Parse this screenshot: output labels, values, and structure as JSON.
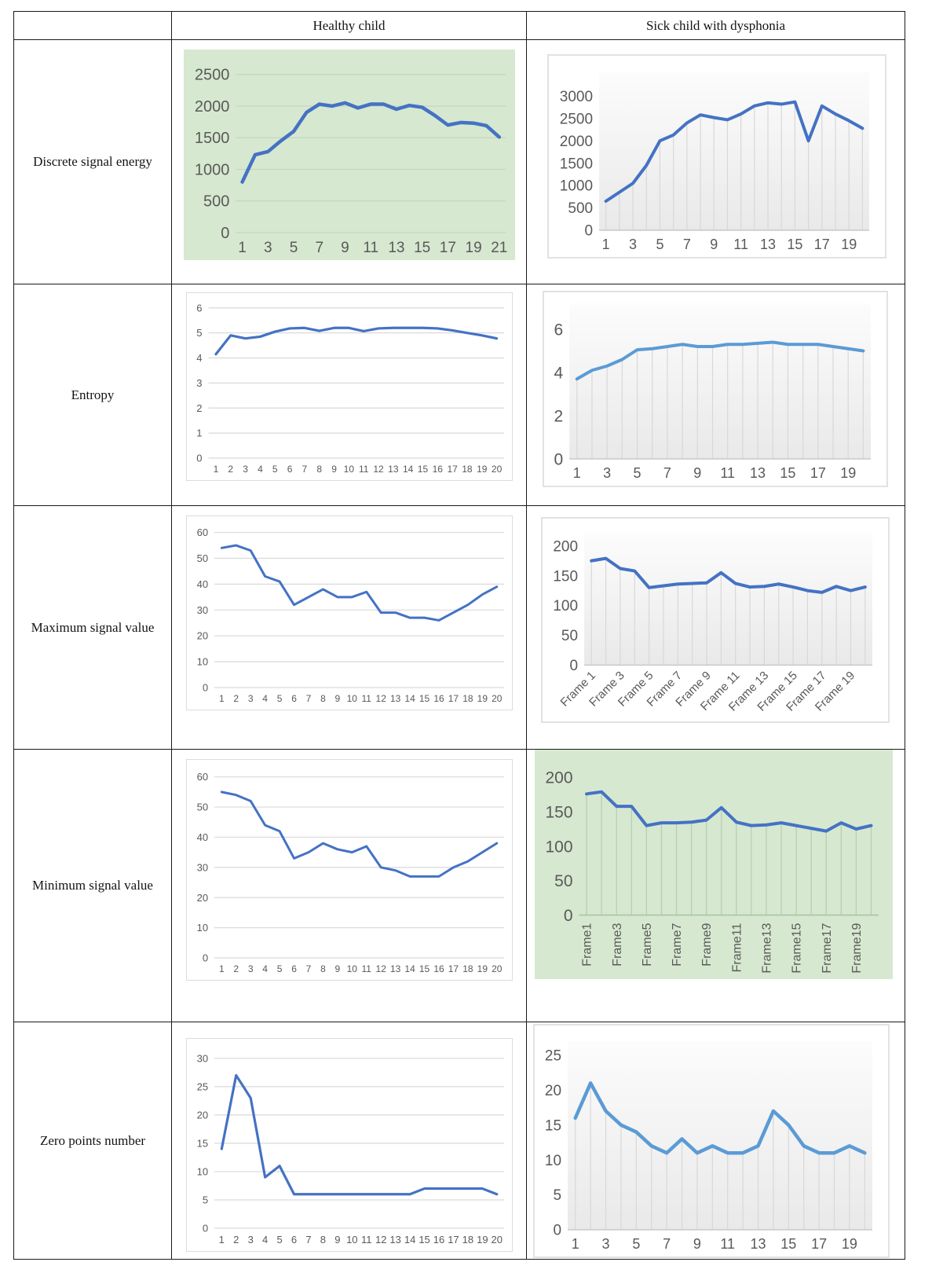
{
  "table": {
    "col_headers": [
      "",
      "Healthy child",
      "Sick child with dysphonia"
    ],
    "rows": [
      {
        "label": "Discrete signal energy"
      },
      {
        "label": "Entropy"
      },
      {
        "label": "Maximum signal value"
      },
      {
        "label": "Minimum signal value"
      },
      {
        "label": "Zero points number"
      }
    ]
  },
  "colors": {
    "healthy_line": "#4472C4",
    "sick_light_line": "#5B9BD5",
    "green_panel": "#D6E8D0",
    "grid_gray": "#D9D9D9",
    "tick_text": "#595959",
    "table_border": "#1A1A1A"
  },
  "chart_data": [
    {
      "id": "energy-healthy",
      "row": "Discrete signal energy",
      "column": "Healthy child",
      "type": "line",
      "categories": [
        "1",
        "2",
        "3",
        "4",
        "5",
        "6",
        "7",
        "8",
        "9",
        "10",
        "11",
        "12",
        "13",
        "14",
        "15",
        "16",
        "17",
        "18",
        "19",
        "20",
        "21"
      ],
      "label_every": 2,
      "values": [
        800,
        1230,
        1280,
        1450,
        1600,
        1900,
        2030,
        2000,
        2050,
        1970,
        2030,
        2030,
        1950,
        2010,
        1980,
        1850,
        1700,
        1740,
        1730,
        1690,
        1510
      ],
      "ylim": [
        0,
        2720
      ],
      "yticks": [
        0,
        500,
        1000,
        1500,
        2000,
        2500
      ],
      "grid": "h",
      "grid_color": "#c3d6c0",
      "axis_color": "#c3d6c0",
      "bg": "green",
      "gradient": false,
      "line_color": "#4472C4",
      "line_width": 4.5,
      "tick_fs": 20,
      "xtick_fs": 19,
      "x_label_rotation": 0,
      "top_pad": 14,
      "right_pad": 12
    },
    {
      "id": "energy-sick",
      "row": "Discrete signal energy",
      "column": "Sick child with dysphonia",
      "type": "line",
      "categories": [
        "1",
        "2",
        "3",
        "4",
        "5",
        "6",
        "7",
        "8",
        "9",
        "10",
        "11",
        "12",
        "13",
        "14",
        "15",
        "16",
        "17",
        "18",
        "19",
        "20"
      ],
      "label_every": 2,
      "values": [
        650,
        850,
        1050,
        1450,
        2000,
        2130,
        2400,
        2580,
        2520,
        2470,
        2600,
        2780,
        2850,
        2820,
        2870,
        2000,
        2780,
        2600,
        2450,
        2280
      ],
      "ylim": [
        0,
        3550
      ],
      "yticks": [
        0,
        500,
        1000,
        1500,
        2000,
        2500,
        3000
      ],
      "grid": "v",
      "grid_color": "#d8d8d8",
      "axis_color": "#c9c9c9",
      "bg": "white",
      "gradient": true,
      "line_color": "#4472C4",
      "line_width": 4,
      "tick_fs": 19,
      "xtick_fs": 18,
      "x_label_rotation": 0,
      "top_pad": 20,
      "right_pad": 20
    },
    {
      "id": "entropy-healthy",
      "row": "Entropy",
      "column": "Healthy child",
      "type": "line",
      "categories": [
        "1",
        "2",
        "3",
        "4",
        "5",
        "6",
        "7",
        "8",
        "9",
        "10",
        "11",
        "12",
        "13",
        "14",
        "15",
        "16",
        "17",
        "18",
        "19",
        "20"
      ],
      "label_every": 1,
      "values": [
        4.15,
        4.9,
        4.78,
        4.85,
        5.05,
        5.18,
        5.2,
        5.08,
        5.2,
        5.2,
        5.07,
        5.18,
        5.2,
        5.2,
        5.2,
        5.18,
        5.1,
        5.0,
        4.9,
        4.78
      ],
      "ylim": [
        0,
        6.15
      ],
      "yticks": [
        0,
        1,
        2,
        3,
        4,
        5,
        6
      ],
      "grid": "h",
      "grid_color": "#d9d9d9",
      "axis_color": "#d9d9d9",
      "bg": "white",
      "gradient": false,
      "line_color": "#4472C4",
      "line_width": 3.2,
      "tick_fs": 13,
      "xtick_fs": 12,
      "x_label_rotation": 0,
      "top_pad": 14,
      "right_pad": 10
    },
    {
      "id": "entropy-sick",
      "row": "Entropy",
      "column": "Sick child with dysphonia",
      "type": "line",
      "categories": [
        "1",
        "2",
        "3",
        "4",
        "5",
        "6",
        "7",
        "8",
        "9",
        "10",
        "11",
        "12",
        "13",
        "14",
        "15",
        "16",
        "17",
        "18",
        "19",
        "20"
      ],
      "label_every": 2,
      "values": [
        3.7,
        4.1,
        4.3,
        4.6,
        5.05,
        5.1,
        5.2,
        5.3,
        5.2,
        5.2,
        5.3,
        5.3,
        5.35,
        5.4,
        5.3,
        5.3,
        5.3,
        5.2,
        5.1,
        5.0
      ],
      "ylim": [
        0,
        7.2
      ],
      "yticks": [
        0,
        2,
        4,
        6
      ],
      "grid": "v",
      "grid_color": "#d8d8d8",
      "axis_color": "#c9c9c9",
      "bg": "white",
      "gradient": true,
      "line_color": "#5B9BD5",
      "line_width": 4,
      "tick_fs": 21,
      "xtick_fs": 18,
      "x_label_rotation": 0,
      "top_pad": 14,
      "right_pad": 20
    },
    {
      "id": "max-healthy",
      "row": "Maximum signal value",
      "column": "Healthy child",
      "type": "line",
      "categories": [
        "1",
        "2",
        "3",
        "4",
        "5",
        "6",
        "7",
        "8",
        "9",
        "10",
        "11",
        "12",
        "13",
        "14",
        "15",
        "16",
        "17",
        "18",
        "19",
        "20"
      ],
      "label_every": 1,
      "values": [
        54,
        55,
        53,
        43,
        41,
        32,
        35,
        38,
        35,
        35,
        37,
        29,
        29,
        27,
        27,
        26,
        29,
        32,
        36,
        39
      ],
      "ylim": [
        0,
        62
      ],
      "yticks": [
        0,
        10,
        20,
        30,
        40,
        50,
        60
      ],
      "grid": "h",
      "grid_color": "#d9d9d9",
      "axis_color": "#d9d9d9",
      "bg": "white",
      "gradient": false,
      "line_color": "#4472C4",
      "line_width": 3,
      "tick_fs": 13,
      "xtick_fs": 12,
      "x_label_rotation": 0,
      "top_pad": 14,
      "right_pad": 10
    },
    {
      "id": "max-sick",
      "row": "Maximum signal value",
      "column": "Sick child with dysphonia",
      "type": "line",
      "categories": [
        "Frame 1",
        "Frame 2",
        "Frame 3",
        "Frame 4",
        "Frame 5",
        "Frame 6",
        "Frame 7",
        "Frame 8",
        "Frame 9",
        "Frame 10",
        "Frame 11",
        "Frame 12",
        "Frame 13",
        "Frame 14",
        "Frame 15",
        "Frame 16",
        "Frame 17",
        "Frame 18",
        "Frame 19",
        "Frame 20"
      ],
      "label_every": 2,
      "values": [
        175,
        179,
        162,
        158,
        130,
        133,
        136,
        137,
        138,
        155,
        137,
        131,
        132,
        136,
        131,
        125,
        122,
        132,
        125,
        131
      ],
      "ylim": [
        0,
        222
      ],
      "yticks": [
        0,
        50,
        100,
        150,
        200
      ],
      "grid": "v",
      "grid_color": "#d8d8d8",
      "axis_color": "#c9c9c9",
      "bg": "white",
      "gradient": true,
      "line_color": "#4472C4",
      "line_width": 4,
      "tick_fs": 19,
      "xtick_fs": 15,
      "x_label_rotation": 45,
      "top_pad": 18,
      "right_pad": 20
    },
    {
      "id": "min-healthy",
      "row": "Minimum signal value",
      "column": "Healthy child",
      "type": "line",
      "categories": [
        "1",
        "2",
        "3",
        "4",
        "5",
        "6",
        "7",
        "8",
        "9",
        "10",
        "11",
        "12",
        "13",
        "14",
        "15",
        "16",
        "17",
        "18",
        "19",
        "20"
      ],
      "label_every": 1,
      "values": [
        55,
        54,
        52,
        44,
        42,
        33,
        35,
        38,
        36,
        35,
        37,
        30,
        29,
        27,
        27,
        27,
        30,
        32,
        35,
        38
      ],
      "ylim": [
        0,
        62
      ],
      "yticks": [
        0,
        10,
        20,
        30,
        40,
        50,
        60
      ],
      "grid": "h",
      "grid_color": "#d9d9d9",
      "axis_color": "#d9d9d9",
      "bg": "white",
      "gradient": false,
      "line_color": "#4472C4",
      "line_width": 3,
      "tick_fs": 13,
      "xtick_fs": 12,
      "x_label_rotation": 0,
      "top_pad": 14,
      "right_pad": 10
    },
    {
      "id": "min-sick",
      "row": "Minimum signal value",
      "column": "Sick child with dysphonia",
      "type": "line",
      "categories": [
        "Frame1",
        "Frame2",
        "Frame3",
        "Frame4",
        "Frame5",
        "Frame6",
        "Frame7",
        "Frame8",
        "Frame9",
        "Frame10",
        "Frame11",
        "Frame12",
        "Frame13",
        "Frame14",
        "Frame15",
        "Frame16",
        "Frame17",
        "Frame18",
        "Frame19",
        "Frame20"
      ],
      "label_every": 2,
      "values": [
        176,
        179,
        158,
        158,
        130,
        134,
        134,
        135,
        138,
        156,
        135,
        130,
        131,
        134,
        130,
        126,
        122,
        134,
        125,
        130
      ],
      "ylim": [
        0,
        222
      ],
      "yticks": [
        0,
        50,
        100,
        150,
        200
      ],
      "grid": "v",
      "grid_color": "#b6cdb3",
      "axis_color": "#a9c2a6",
      "bg": "green",
      "gradient": false,
      "line_color": "#4472C4",
      "line_width": 4,
      "tick_fs": 21,
      "xtick_fs": 16,
      "x_label_rotation": 90,
      "top_pad": 16,
      "right_pad": 18
    },
    {
      "id": "zero-healthy",
      "row": "Zero points number",
      "column": "Healthy child",
      "type": "line",
      "categories": [
        "1",
        "2",
        "3",
        "4",
        "5",
        "6",
        "7",
        "8",
        "9",
        "10",
        "11",
        "12",
        "13",
        "14",
        "15",
        "16",
        "17",
        "18",
        "19",
        "20"
      ],
      "label_every": 1,
      "values": [
        14,
        27,
        23,
        9,
        11,
        6,
        6,
        6,
        6,
        6,
        6,
        6,
        6,
        6,
        7,
        7,
        7,
        7,
        7,
        6
      ],
      "ylim": [
        0,
        31.5
      ],
      "yticks": [
        0,
        5,
        10,
        15,
        20,
        25,
        30
      ],
      "grid": "h",
      "grid_color": "#d9d9d9",
      "axis_color": "#d9d9d9",
      "bg": "white",
      "gradient": false,
      "line_color": "#4472C4",
      "line_width": 3.2,
      "tick_fs": 13,
      "xtick_fs": 13,
      "x_label_rotation": 0,
      "top_pad": 14,
      "right_pad": 10
    },
    {
      "id": "zero-sick",
      "row": "Zero points number",
      "column": "Sick child with dysphonia",
      "type": "line",
      "categories": [
        "1",
        "2",
        "3",
        "4",
        "5",
        "6",
        "7",
        "8",
        "9",
        "10",
        "11",
        "12",
        "13",
        "14",
        "15",
        "16",
        "17",
        "18",
        "19",
        "20"
      ],
      "label_every": 2,
      "values": [
        16,
        21,
        17,
        15,
        14,
        12,
        11,
        13,
        11,
        12,
        11,
        11,
        12,
        17,
        15,
        12,
        11,
        11,
        12,
        11
      ],
      "ylim": [
        0,
        27
      ],
      "yticks": [
        0,
        5,
        10,
        15,
        20,
        25
      ],
      "grid": "v",
      "grid_color": "#d8d8d8",
      "axis_color": "#c9c9c9",
      "bg": "white",
      "gradient": true,
      "line_color": "#5B9BD5",
      "line_width": 4.5,
      "tick_fs": 19,
      "xtick_fs": 18,
      "x_label_rotation": 0,
      "top_pad": 20,
      "right_pad": 20
    }
  ]
}
